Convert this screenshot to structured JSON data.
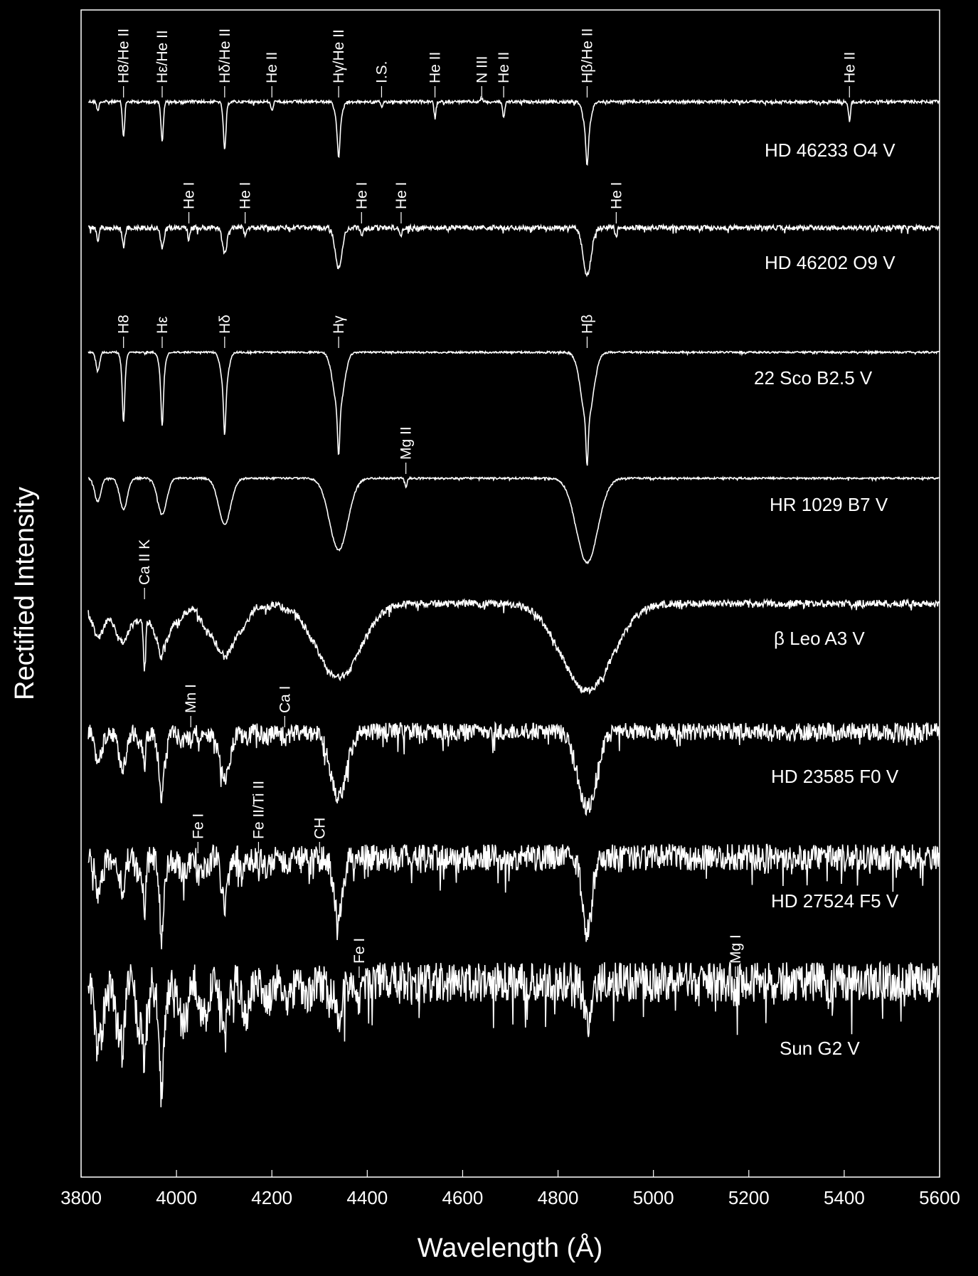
{
  "chart_data": {
    "type": "line",
    "xlabel": "Wavelength (Å)",
    "ylabel": "Rectified Intensity",
    "xlim": [
      3800,
      5600
    ],
    "xticks": [
      3800,
      4000,
      4200,
      4400,
      4600,
      4800,
      5000,
      5200,
      5400,
      5600
    ],
    "grid": false,
    "series": [
      {
        "name": "HD 46233  O4 V",
        "offset": 0,
        "lines": [
          {
            "label": "H8/He II",
            "wl": 3889,
            "depth": 0.06
          },
          {
            "label": "Hε/He II",
            "wl": 3970,
            "depth": 0.07
          },
          {
            "label": "Hδ/He II",
            "wl": 4101,
            "depth": 0.08
          },
          {
            "label": "He II",
            "wl": 4200,
            "depth": 0.025
          },
          {
            "label": "Hγ/He II",
            "wl": 4340,
            "depth": 0.07
          },
          {
            "label": "I.S.",
            "wl": 4430,
            "depth": 0.015
          },
          {
            "label": "He II",
            "wl": 4542,
            "depth": 0.04
          },
          {
            "label": "N III",
            "wl": 4640,
            "depth": -0.01
          },
          {
            "label": "He II",
            "wl": 4686,
            "depth": 0.045
          },
          {
            "label": "Hβ/He II",
            "wl": 4861,
            "depth": 0.08
          },
          {
            "label": "He II",
            "wl": 5411,
            "depth": 0.05
          }
        ]
      },
      {
        "name": "HD 46202   O9 V",
        "offset": 1,
        "lines": [
          {
            "label": "He I",
            "wl": 4026,
            "depth": 0.03
          },
          {
            "label": "He I",
            "wl": 4144,
            "depth": 0.018
          },
          {
            "label": "He I",
            "wl": 4388,
            "depth": 0.02
          },
          {
            "label": "He I",
            "wl": 4471,
            "depth": 0.025
          },
          {
            "label": "He I",
            "wl": 4922,
            "depth": 0.02
          }
        ]
      },
      {
        "name": "22 Sco   B2.5 V",
        "offset": 2,
        "lines": [
          {
            "label": "H8",
            "wl": 3889,
            "depth": 0.1
          },
          {
            "label": "Hε",
            "wl": 3970,
            "depth": 0.1
          },
          {
            "label": "Hδ",
            "wl": 4101,
            "depth": 0.1
          },
          {
            "label": "Hγ",
            "wl": 4340,
            "depth": 0.1
          },
          {
            "label": "Hβ",
            "wl": 4861,
            "depth": 0.1
          }
        ]
      },
      {
        "name": "HR 1029  B7 V",
        "offset": 3,
        "lines": [
          {
            "label": "Mg II",
            "wl": 4481,
            "depth": 0.02
          }
        ]
      },
      {
        "name": "β Leo  A3 V",
        "offset": 4,
        "lines": [
          {
            "label": "Ca II K",
            "wl": 3933,
            "depth": 0.08
          }
        ]
      },
      {
        "name": "HD 23585  F0 V",
        "offset": 5,
        "lines": [
          {
            "label": "Mn I",
            "wl": 4030,
            "depth": 0.02
          },
          {
            "label": "Ca I",
            "wl": 4227,
            "depth": 0.02
          }
        ]
      },
      {
        "name": "HD 27524  F5 V",
        "offset": 6,
        "lines": [
          {
            "label": "Fe I",
            "wl": 4045,
            "depth": 0.03
          },
          {
            "label": "Fe II/Ti II",
            "wl": 4172,
            "depth": 0.025
          },
          {
            "label": "CH",
            "wl": 4300,
            "depth": 0.03
          }
        ]
      },
      {
        "name": "Sun  G2 V",
        "offset": 7,
        "lines": [
          {
            "label": "Fe I",
            "wl": 4383,
            "depth": 0.05
          },
          {
            "label": "Mg I",
            "wl": 5172,
            "depth": 0.05
          }
        ]
      }
    ]
  }
}
